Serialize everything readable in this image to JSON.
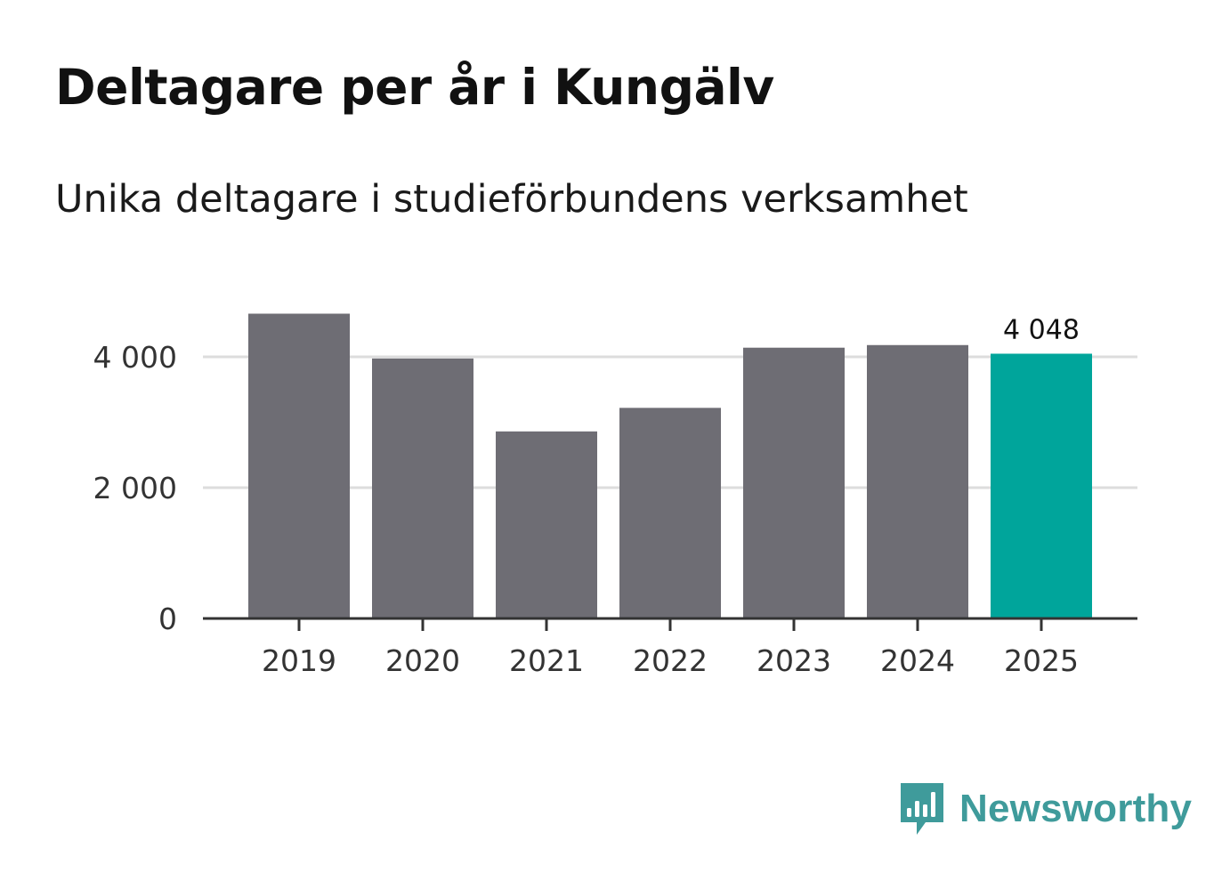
{
  "title": "Deltagare per år i Kungälv",
  "subtitle": "Unika deltagare i studieförbundens verksamhet",
  "brand": {
    "name": "Newsworthy",
    "icon": "newsworthy-logo-icon",
    "color": "#3f9b9b"
  },
  "colors": {
    "bar": "#6e6d74",
    "highlight": "#00a59b",
    "grid": "#dddddd",
    "axis": "#333333"
  },
  "chart_data": {
    "type": "bar",
    "title": "Deltagare per år i Kungälv",
    "subtitle": "Unika deltagare i studieförbundens verksamhet",
    "xlabel": "",
    "ylabel": "",
    "categories": [
      "2019",
      "2020",
      "2021",
      "2022",
      "2023",
      "2024",
      "2025"
    ],
    "values": [
      4660,
      3975,
      2860,
      3220,
      4140,
      4180,
      4048
    ],
    "highlight_index": 6,
    "data_labels": [
      {
        "index": 6,
        "text": "4 048"
      }
    ],
    "ylim": [
      0,
      4800
    ],
    "y_ticks": [
      {
        "value": 0,
        "label": "0"
      },
      {
        "value": 2000,
        "label": "2 000"
      },
      {
        "value": 4000,
        "label": "4 000"
      }
    ],
    "grid": true,
    "legend": "none"
  }
}
